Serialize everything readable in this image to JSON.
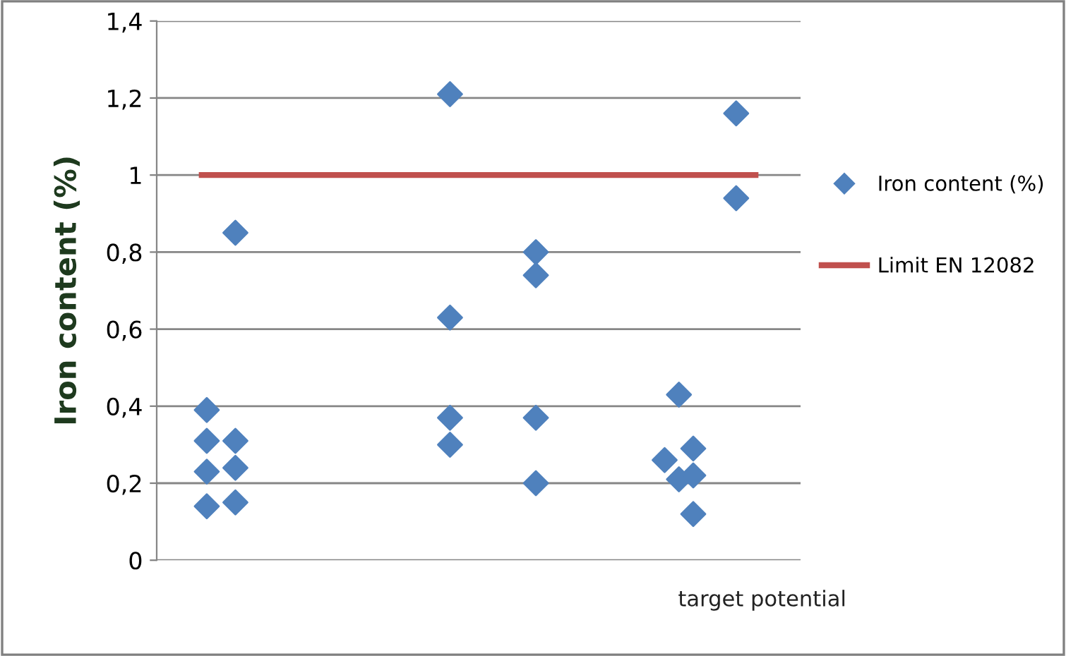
{
  "chart_data": {
    "type": "scatter",
    "ylabel": "Iron content (%)",
    "annotations": [
      "target potential"
    ],
    "categories": [
      null,
      null,
      null,
      null,
      null,
      null,
      null,
      null,
      null,
      null,
      null,
      null,
      null,
      null,
      null,
      null,
      null,
      null,
      null,
      null,
      null,
      null,
      null,
      null,
      null,
      null,
      null,
      null,
      null,
      null,
      null,
      null,
      null,
      null,
      null,
      null,
      null,
      null,
      null,
      null,
      null,
      null,
      null,
      null,
      null
    ],
    "series": [
      {
        "name": "Iron content (%)",
        "color": "#4f81bd",
        "values": [
          null,
          null,
          null,
          0.39,
          null,
          0.85,
          null,
          null,
          null,
          null,
          null,
          null,
          null,
          null,
          null,
          null,
          null,
          null,
          null,
          null,
          1.21,
          null,
          null,
          null,
          null,
          null,
          0.8,
          null,
          null,
          null,
          null,
          null,
          null,
          null,
          null,
          0.26,
          0.43,
          0.29,
          null,
          null,
          1.16,
          null,
          null,
          null,
          null
        ]
      },
      {
        "color": "#4f81bd",
        "values": [
          null,
          null,
          null,
          0.31,
          null,
          0.31,
          null,
          null,
          null,
          null,
          null,
          null,
          null,
          null,
          null,
          null,
          null,
          null,
          null,
          null,
          0.63,
          null,
          null,
          null,
          null,
          null,
          0.74,
          null,
          null,
          null,
          null,
          null,
          null,
          null,
          null,
          null,
          0.21,
          0.22,
          null,
          null,
          0.94,
          null,
          null,
          null,
          null
        ]
      },
      {
        "color": "#4f81bd",
        "values": [
          null,
          null,
          null,
          0.23,
          null,
          0.24,
          null,
          null,
          null,
          null,
          null,
          null,
          null,
          null,
          null,
          null,
          null,
          null,
          null,
          null,
          0.37,
          null,
          null,
          null,
          null,
          null,
          0.37,
          null,
          null,
          null,
          null,
          null,
          null,
          null,
          null,
          null,
          null,
          0.12,
          null,
          null,
          null,
          null,
          null,
          null,
          null
        ]
      },
      {
        "color": "#4f81bd",
        "values": [
          null,
          null,
          null,
          0.14,
          null,
          0.15,
          null,
          null,
          null,
          null,
          null,
          null,
          null,
          null,
          null,
          null,
          null,
          null,
          null,
          null,
          0.3,
          null,
          null,
          null,
          null,
          null,
          0.2,
          null,
          null,
          null,
          null,
          null,
          null,
          null,
          null,
          null,
          null,
          null,
          null,
          null,
          null,
          null,
          null,
          null,
          null
        ]
      }
    ],
    "ref_lines": [
      {
        "axis": "y",
        "value": 1,
        "label": "Limit EN 12082",
        "color": "#c0504d",
        "line_style": "solid"
      }
    ],
    "ylim": [
      0,
      1.4
    ],
    "yticks": [
      {
        "value": 0,
        "label": "0"
      },
      {
        "value": 0.2,
        "label": "0,2"
      },
      {
        "value": 0.4,
        "label": "0,4"
      },
      {
        "value": 0.6,
        "label": "0,6"
      },
      {
        "value": 0.8,
        "label": "0,8"
      },
      {
        "value": 1,
        "label": "1"
      },
      {
        "value": 1.2,
        "label": "1,2"
      },
      {
        "value": 1.4,
        "label": "1,4"
      }
    ],
    "tick_labels": "y",
    "grid": "y",
    "legend": "right",
    "marker": "diamond"
  }
}
